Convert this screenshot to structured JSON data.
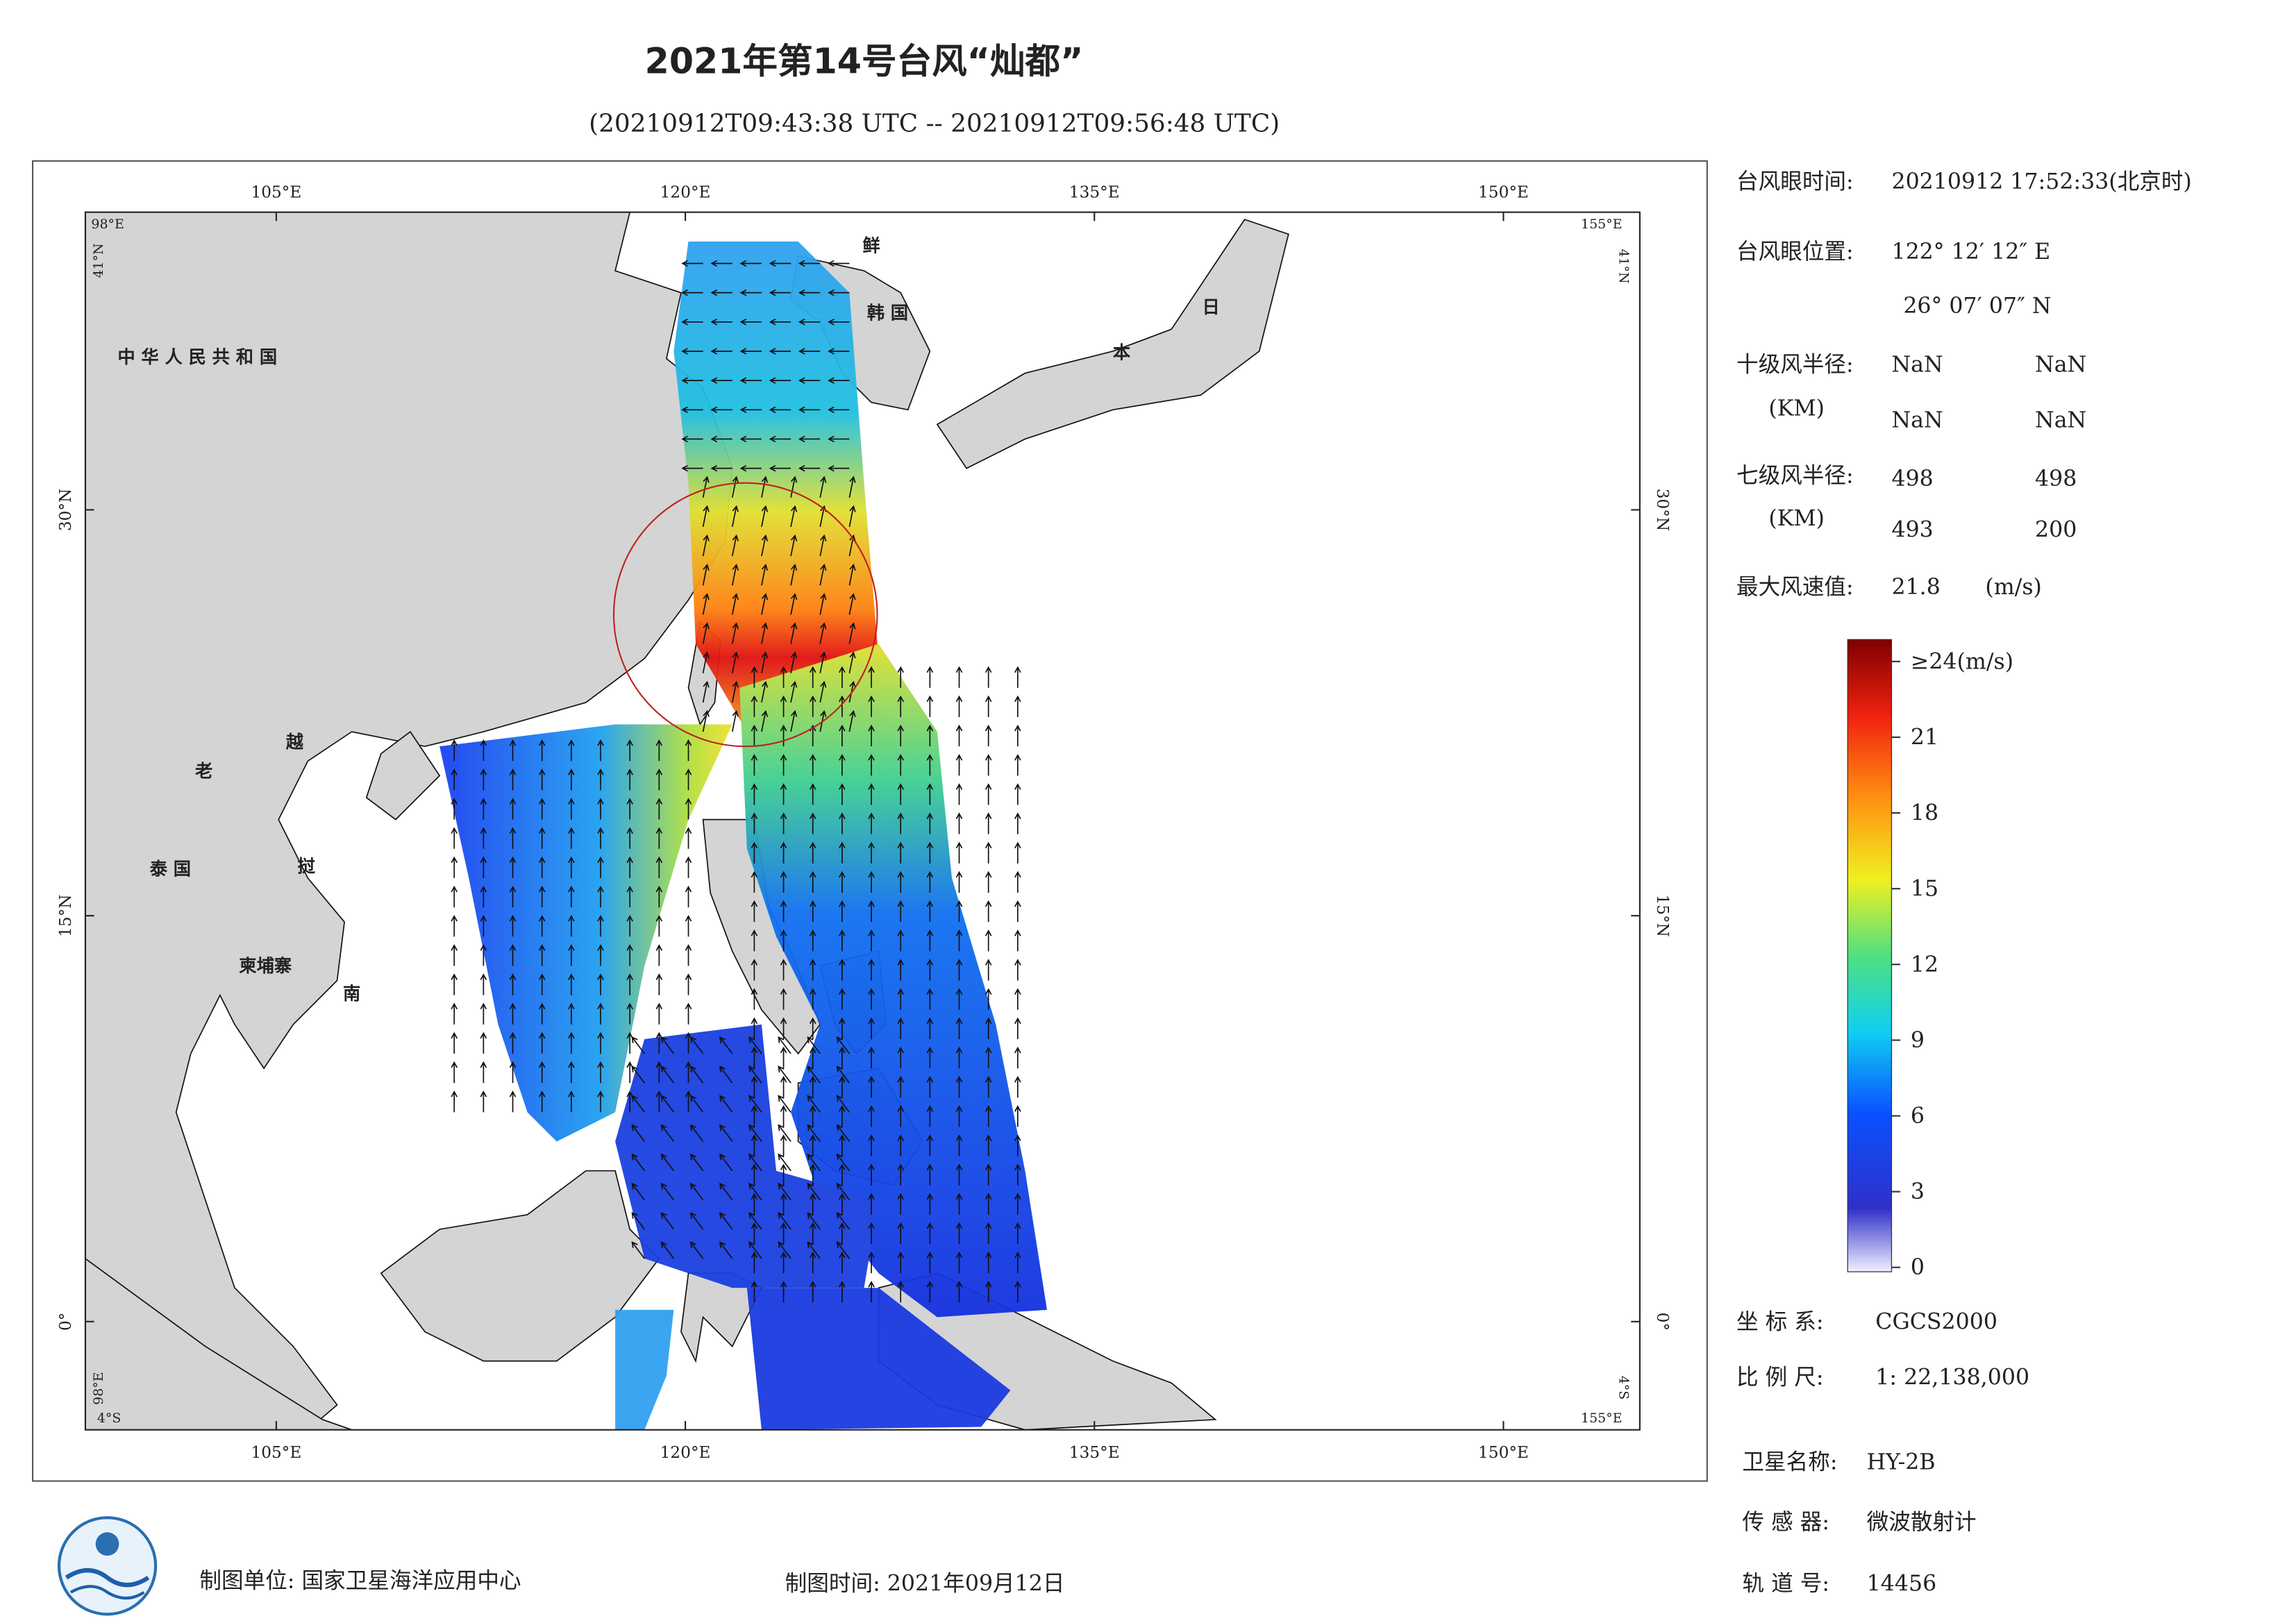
{
  "header": {
    "title": "2021年第14号台风“灿都”",
    "subtitle": "(20210912T09:43:38 UTC -- 20210912T09:56:48 UTC)"
  },
  "map": {
    "lonlim": [
      98,
      155
    ],
    "latlim": [
      -4,
      41
    ],
    "lon_ticks": [
      {
        "value": 105,
        "label": "105°E"
      },
      {
        "value": 120,
        "label": "120°E"
      },
      {
        "value": 135,
        "label": "135°E"
      },
      {
        "value": 150,
        "label": "150°E"
      }
    ],
    "lat_ticks": [
      {
        "value": 30,
        "label": "30°N"
      },
      {
        "value": 15,
        "label": "15°N"
      },
      {
        "value": 0,
        "label": "0°"
      }
    ],
    "corner_labels": [
      "98°E",
      "41°N",
      "155°E",
      "41°N",
      "98°E",
      "4°S",
      "4°S",
      "155°E"
    ],
    "places": [
      "中 华 人 民 共 和 国",
      "老",
      "越",
      "挝",
      "泰 国",
      "柬埔寨",
      "南",
      "鲜",
      "韩 国",
      "日",
      "本"
    ]
  },
  "info": {
    "eye_time_label": "台风眼时间:",
    "eye_time": "20210912 17:52:33(北京时)",
    "eye_pos_label": "台风眼位置:",
    "eye_lon": "122° 12′ 12″ E",
    "eye_lat": "26° 07′ 07″ N",
    "r10_label": "十级风半径:",
    "r10_unit": "(KM)",
    "r10": [
      "NaN",
      "NaN",
      "NaN",
      "NaN"
    ],
    "r7_label": "七级风半径:",
    "r7_unit": "(KM)",
    "r7": [
      498,
      498,
      493,
      200
    ],
    "max_wind_label": "最大风速值:",
    "max_wind": 21.8,
    "max_wind_unit": "(m/s)"
  },
  "colorbar": {
    "ticks": [
      0,
      3,
      6,
      9,
      12,
      15,
      18,
      21,
      {
        "value": 24,
        "label": "≥24(m/s)"
      }
    ]
  },
  "meta": {
    "crs_label": "坐 标 系:",
    "crs": "CGCS2000",
    "scale_label": "比 例 尺:",
    "scale": "1: 22,138,000",
    "satellite_label": "卫星名称:",
    "satellite": "HY-2B",
    "sensor_label": "传 感 器:",
    "sensor": "微波散射计",
    "orbit_label": "轨 道 号:",
    "orbit": 14456
  },
  "footer": {
    "unit": "制图单位: 国家卫星海洋应用中心",
    "date": "制图时间: 2021年09月12日"
  }
}
